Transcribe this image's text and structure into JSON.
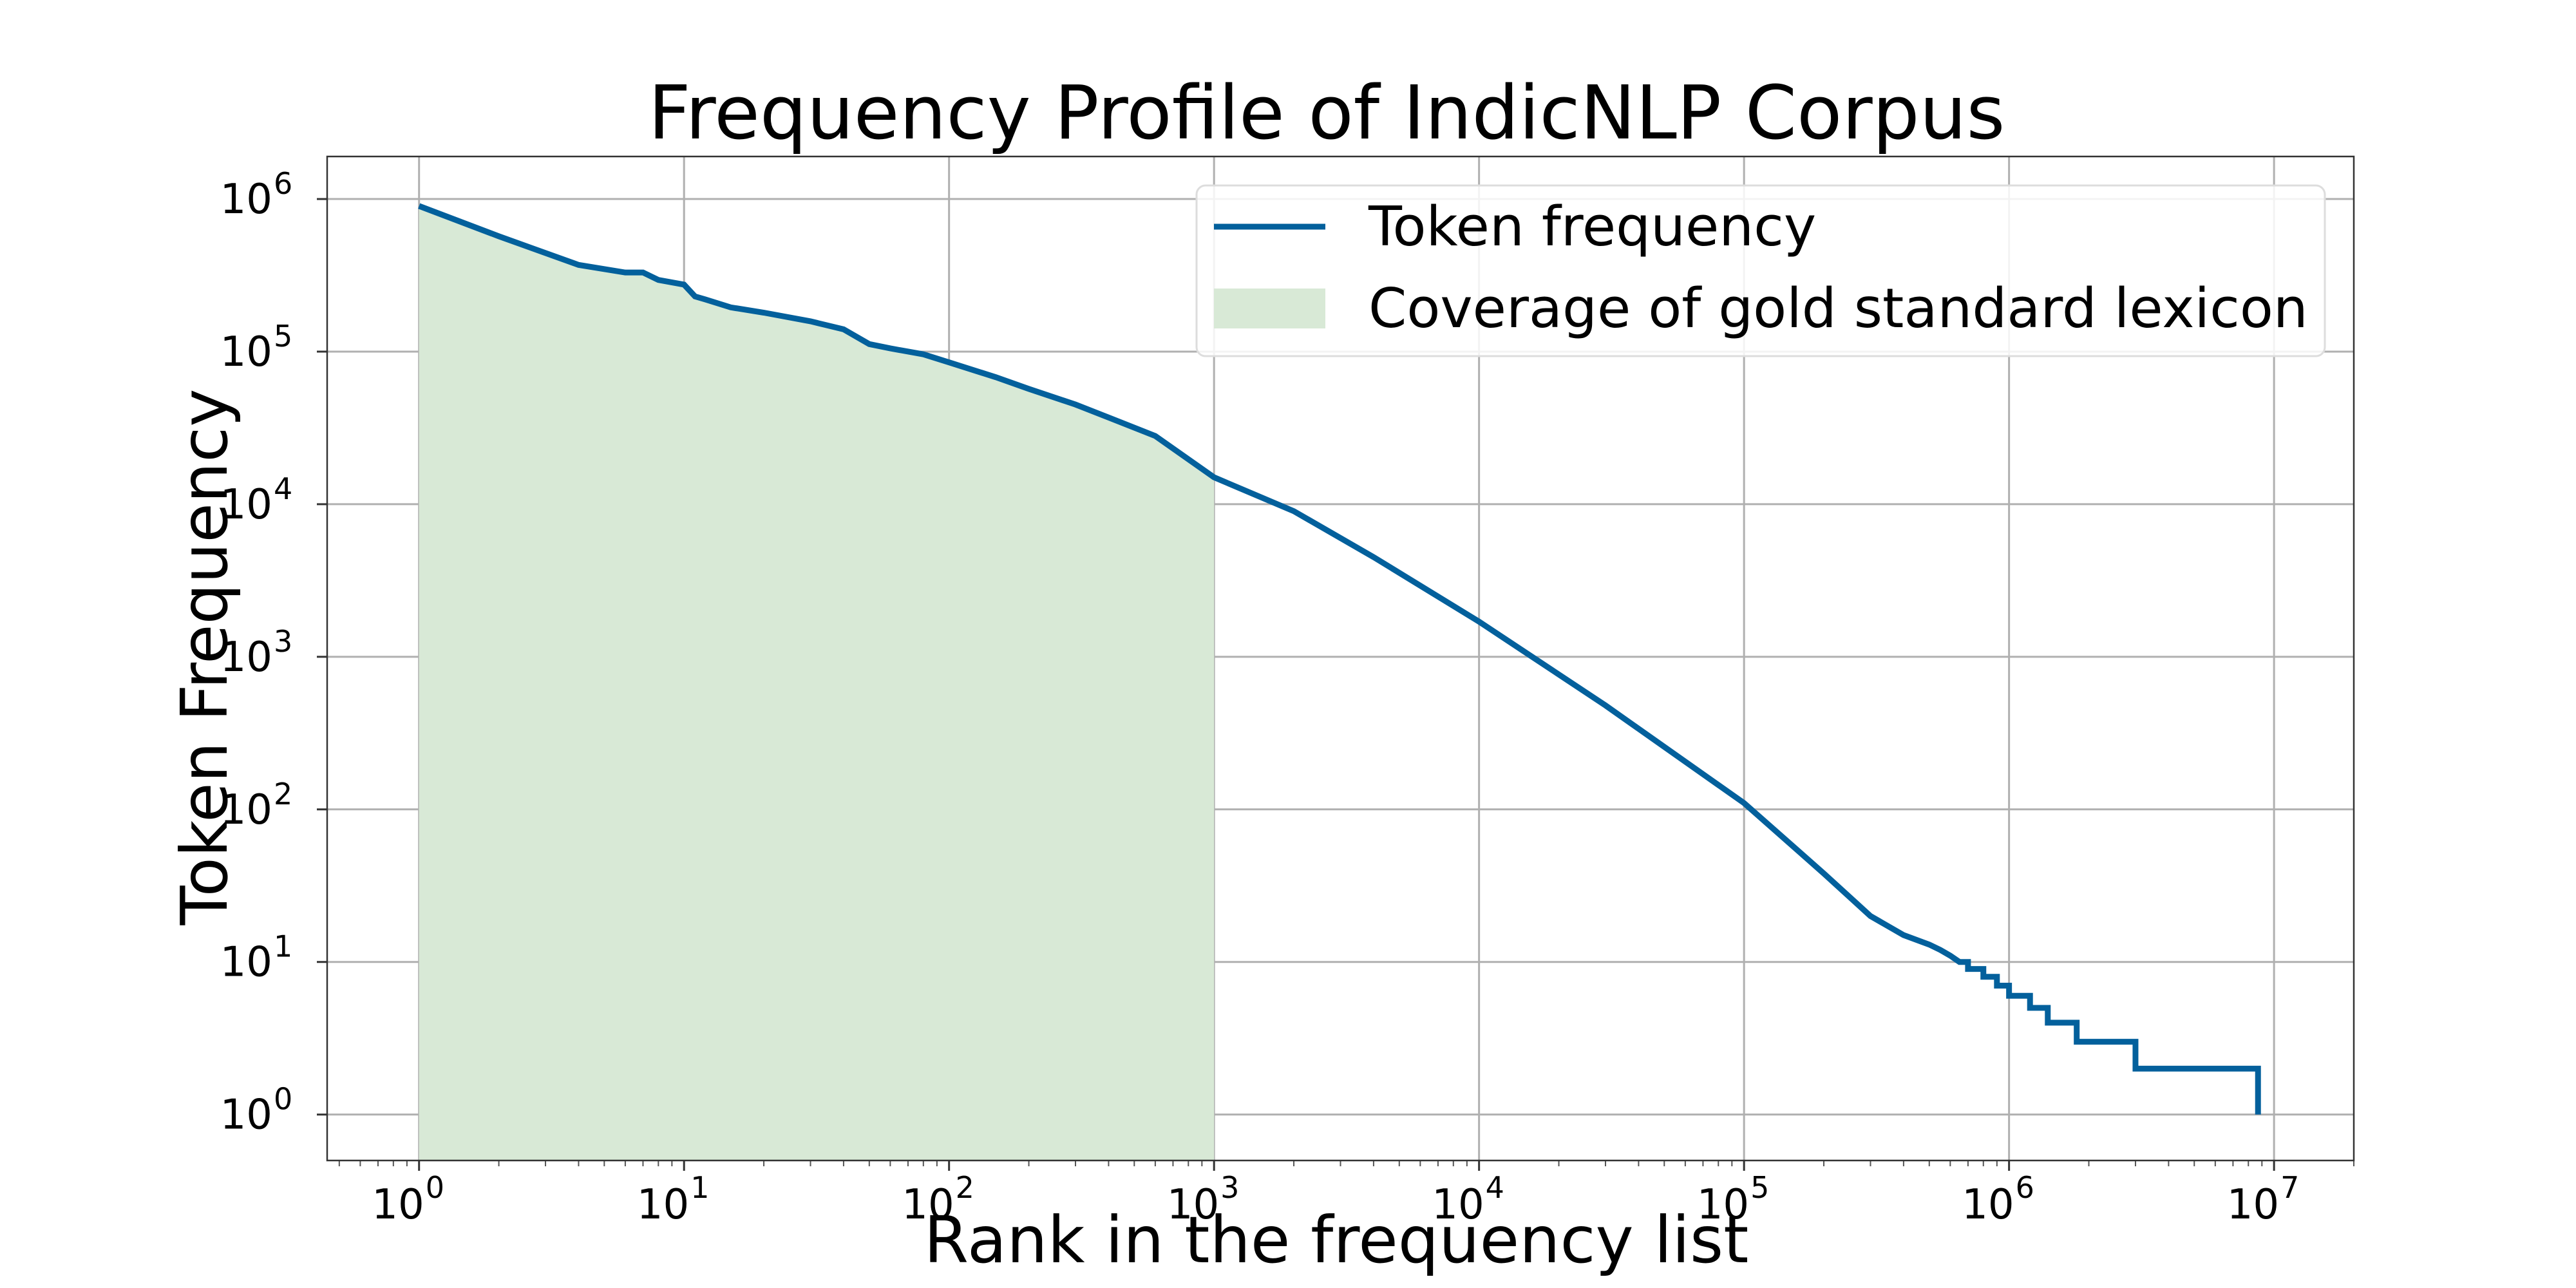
{
  "chart_data": {
    "type": "line",
    "title": "Frequency Profile of IndicNLP Corpus",
    "xlabel": "Rank in the frequency list",
    "ylabel": "Token Frequency",
    "xscale": "log",
    "yscale": "log",
    "xlim": [
      0.45,
      20000000
    ],
    "ylim": [
      0.5,
      1900000
    ],
    "grid": true,
    "legend_position": "top-right",
    "x_ticks": [
      {
        "base": "10",
        "exp": "0",
        "value": 1
      },
      {
        "base": "10",
        "exp": "1",
        "value": 10
      },
      {
        "base": "10",
        "exp": "2",
        "value": 100
      },
      {
        "base": "10",
        "exp": "3",
        "value": 1000
      },
      {
        "base": "10",
        "exp": "4",
        "value": 10000
      },
      {
        "base": "10",
        "exp": "5",
        "value": 100000
      },
      {
        "base": "10",
        "exp": "6",
        "value": 1000000
      },
      {
        "base": "10",
        "exp": "7",
        "value": 10000000
      }
    ],
    "y_ticks": [
      {
        "base": "10",
        "exp": "0",
        "value": 1
      },
      {
        "base": "10",
        "exp": "1",
        "value": 10
      },
      {
        "base": "10",
        "exp": "2",
        "value": 100
      },
      {
        "base": "10",
        "exp": "3",
        "value": 1000
      },
      {
        "base": "10",
        "exp": "4",
        "value": 10000
      },
      {
        "base": "10",
        "exp": "5",
        "value": 100000
      },
      {
        "base": "10",
        "exp": "6",
        "value": 1000000
      }
    ],
    "series": [
      {
        "name": "Token frequency",
        "kind": "line",
        "color": "#03609c",
        "x": [
          1,
          2,
          4,
          6,
          7,
          8,
          10,
          11,
          12,
          15,
          20,
          30,
          40,
          50,
          60,
          80,
          100,
          150,
          200,
          300,
          400,
          600,
          1000,
          2000,
          4000,
          10000,
          30000,
          100000,
          200000,
          300000,
          400000,
          500000,
          550000,
          600000,
          650000,
          700000,
          750000,
          800000,
          900000,
          1000000,
          1200000,
          1400000,
          1800000,
          3000000,
          8700000
        ],
        "y": [
          900000,
          570000,
          370000,
          330000,
          330000,
          295000,
          275000,
          230000,
          220000,
          195000,
          180000,
          158000,
          140000,
          112000,
          105000,
          96000,
          85000,
          68000,
          57000,
          45000,
          37000,
          28000,
          15000,
          9000,
          4500,
          1700,
          480,
          110,
          38,
          20,
          15,
          13,
          12,
          11,
          10,
          9,
          9,
          8,
          7,
          6,
          5,
          4,
          3,
          2,
          1
        ]
      },
      {
        "name": "Coverage of gold standard lexicon",
        "kind": "area",
        "color": "#d8e9d6",
        "x_range": [
          1,
          1000
        ]
      }
    ]
  }
}
